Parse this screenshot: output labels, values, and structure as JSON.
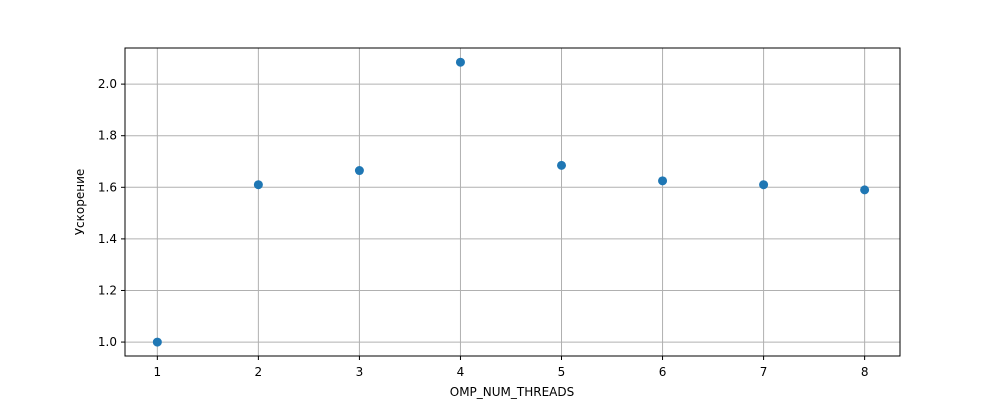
{
  "chart_data": {
    "type": "scatter",
    "title": "",
    "xlabel": "OMP_NUM_THREADS",
    "ylabel": "Ускорение",
    "x": [
      1,
      2,
      3,
      4,
      5,
      6,
      7,
      8
    ],
    "y": [
      1.0,
      1.61,
      1.665,
      2.085,
      1.685,
      1.625,
      1.61,
      1.59
    ],
    "xlim": [
      0.68,
      8.35
    ],
    "ylim": [
      0.946,
      2.14
    ],
    "xticks": [
      1,
      2,
      3,
      4,
      5,
      6,
      7,
      8
    ],
    "xtick_labels": [
      "1",
      "2",
      "3",
      "4",
      "5",
      "6",
      "7",
      "8"
    ],
    "yticks": [
      1.0,
      1.2,
      1.4,
      1.6,
      1.8,
      2.0
    ],
    "ytick_labels": [
      "1.0",
      "1.2",
      "1.4",
      "1.6",
      "1.8",
      "2.0"
    ],
    "grid": true,
    "marker_color": "#1f77b4",
    "grid_color": "#b0b0b0",
    "axes_color": "#000000"
  }
}
